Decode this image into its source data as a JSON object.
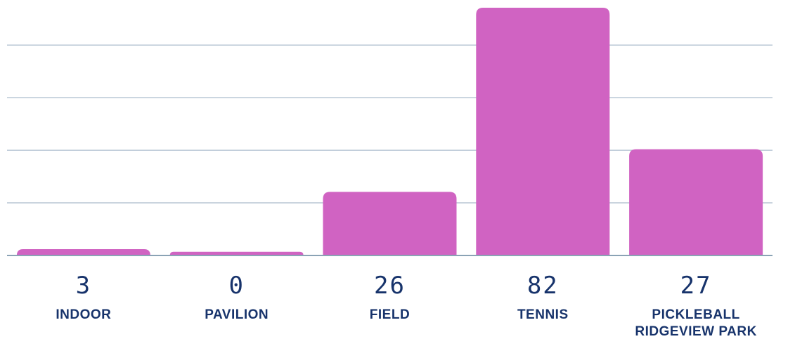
{
  "colors": {
    "bar": "#d063c2",
    "text": "#17336b",
    "grid": "#b8c6d4",
    "baseline": "#8aa3b5"
  },
  "chart_data": {
    "type": "bar",
    "categories": [
      [
        "INDOOR"
      ],
      [
        "PAVILION"
      ],
      [
        "FIELD"
      ],
      [
        "TENNIS"
      ],
      [
        "PICKLEBALL",
        "RIDGEVIEW PARK"
      ]
    ],
    "values": [
      3,
      0,
      26,
      82,
      27
    ],
    "value_labels": [
      "3",
      "0",
      "26",
      "82",
      "27"
    ],
    "bar_heights_units": [
      1.2,
      0.7,
      12.1,
      47.1,
      20.2
    ],
    "ylim": [
      0,
      47.1
    ],
    "grid_values": [
      10,
      20,
      30,
      40
    ],
    "grid": true,
    "title": "",
    "xlabel": "",
    "ylabel": ""
  }
}
